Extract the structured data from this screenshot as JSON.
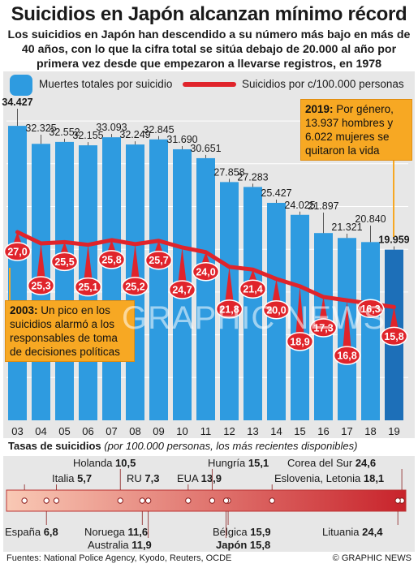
{
  "title": "Suicidios en Japón alcanzan mínimo récord",
  "subtitle": "Los suicidios en Japón han descendido a su número más bajo en más de 40 años, con lo que la cifra total  se sitúa debajo de 20.000 al año por primera vez desde que empezaron a llevarse registros, en 1978",
  "legend": {
    "bars_label": "Muertes totales por suicidio",
    "line_label": "Suicidios por c/100.000 personas"
  },
  "colors": {
    "bar": "#2e9be0",
    "bar_highlight": "#1d6fb8",
    "line": "#e0242b",
    "callout": "#f7a823",
    "scale_start": "#f9c9b5",
    "scale_end": "#c8232b"
  },
  "chart_data": [
    {
      "type": "bar",
      "title": "Suicidios en Japón alcanzan mínimo récord",
      "categories": [
        "03",
        "04",
        "05",
        "06",
        "07",
        "08",
        "09",
        "10",
        "11",
        "12",
        "13",
        "14",
        "15",
        "16",
        "17",
        "18",
        "19"
      ],
      "series": [
        {
          "name": "Muertes totales por suicidio",
          "values": [
            34427,
            32325,
            32552,
            32155,
            33093,
            32249,
            32845,
            31690,
            30651,
            27858,
            27283,
            25427,
            24025,
            21897,
            21321,
            20840,
            19959
          ],
          "labels": [
            "34.427",
            "32.325",
            "32.552",
            "32.155",
            "33.093",
            "32.249",
            "32.845",
            "31.690",
            "30.651",
            "27.858",
            "27.283",
            "25.427",
            "24.025",
            "21.897",
            "21.321",
            "20.840",
            "19.959"
          ]
        },
        {
          "name": "Suicidios por c/100.000 personas",
          "type": "line",
          "values": [
            27.0,
            25.3,
            25.5,
            25.1,
            25.8,
            25.2,
            25.7,
            24.7,
            24.0,
            21.8,
            21.4,
            20.0,
            18.9,
            17.3,
            16.8,
            16.3,
            15.8
          ],
          "labels": [
            "27,0",
            "25,3",
            "25,5",
            "25,1",
            "25,8",
            "25,2",
            "25,7",
            "24,7",
            "24,0",
            "21,8",
            "21,4",
            "20,0",
            "18,9",
            "17,3",
            "16,8",
            "16,3",
            "15,8"
          ]
        }
      ],
      "annotations": [
        {
          "year": "19",
          "text_bold": "2019:",
          "text": "Por género, 13.937 hombres y 6.022 mujeres se quitaron la vida"
        },
        {
          "year": "03",
          "text_bold": "2003:",
          "text": "Un pico en los suicidios alarmó a los responsables de toma de decisiones políticas"
        }
      ]
    },
    {
      "type": "scatter",
      "title": "Tasas de suicidios",
      "subtitle": "(por 100.000 personas, los más recientes disponibles)",
      "points": [
        {
          "country": "España",
          "value": 6.8,
          "label": "6,8"
        },
        {
          "country": "Italia",
          "value": 5.7,
          "label": "5,7"
        },
        {
          "country": "Holanda",
          "value": 10.5,
          "label": "10,5"
        },
        {
          "country": "RU",
          "value": 7.3,
          "label": "7,3"
        },
        {
          "country": "Noruega",
          "value": 11.6,
          "label": "11,6"
        },
        {
          "country": "Australia",
          "value": 11.9,
          "label": "11,9"
        },
        {
          "country": "EUA",
          "value": 13.9,
          "label": "13,9"
        },
        {
          "country": "Hungría",
          "value": 15.1,
          "label": "15,1"
        },
        {
          "country": "Bélgica",
          "value": 15.9,
          "label": "15,9"
        },
        {
          "country": "Japón",
          "value": 15.8,
          "label": "15,8"
        },
        {
          "country": "Eslovenia, Letonia",
          "value": 18.1,
          "label": "18,1"
        },
        {
          "country": "Corea del Sur",
          "value": 24.6,
          "label": "24,6"
        },
        {
          "country": "Lituania",
          "value": 24.4,
          "label": "24,4"
        }
      ]
    }
  ],
  "rates_heading": "Tasas de suicidios",
  "rates_note": "(por 100.000 personas, los más recientes disponibles)",
  "footer_sources": "Fuentes: National Police Agency, Kyodo, Reuters, OCDE",
  "footer_credit": "© GRAPHIC NEWS",
  "watermark": "GRAPHIC NEWS"
}
